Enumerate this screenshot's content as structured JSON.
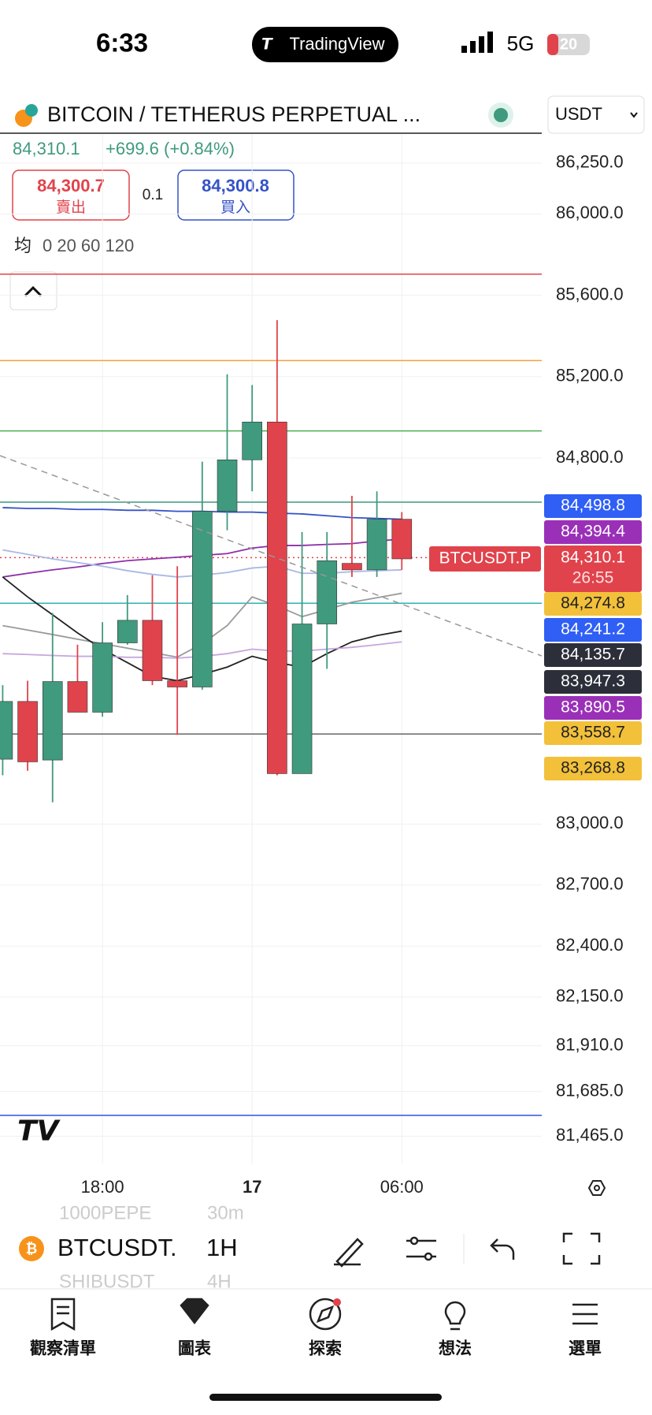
{
  "status_bar": {
    "time": "6:33",
    "app": "TradingView",
    "network": "5G",
    "battery": "20"
  },
  "header": {
    "symbol": "BITCOIN / TETHERUS PERPETUAL ...",
    "currency": "USDT"
  },
  "quote": {
    "price": "84,310.1",
    "change": "+699.6 (+0.84%)",
    "sell": {
      "price": "84,300.7",
      "label": "賣出"
    },
    "spread": "0.1",
    "buy": {
      "price": "84,300.8",
      "label": "買入"
    }
  },
  "indicator_legend": {
    "label": "均",
    "params": "0 20 60 120"
  },
  "chart_data": {
    "type": "candlestick",
    "categories": [
      null,
      null,
      null,
      null,
      "18:00",
      null,
      null,
      null,
      null,
      null,
      "17",
      null,
      null,
      null,
      null,
      null,
      "06:00"
    ],
    "open": [
      83319,
      83603,
      83315,
      83701,
      83550,
      83891,
      84002,
      83705,
      83674,
      84538,
      84791,
      84977,
      83248,
      83984,
      84282,
      84250,
      84499
    ],
    "high": [
      83683,
      83705,
      84038,
      83882,
      83993,
      84126,
      84224,
      84268,
      84782,
      85212,
      85159,
      85478,
      84436,
      84436,
      84614,
      84636,
      84534
    ],
    "low": [
      83240,
      83262,
      83107,
      83550,
      83528,
      83882,
      83683,
      83439,
      83661,
      84445,
      84636,
      83240,
      83248,
      83763,
      84215,
      84215,
      84250
    ],
    "close": [
      83603,
      83306,
      83701,
      83550,
      83891,
      84002,
      83705,
      83674,
      84538,
      84791,
      84977,
      83248,
      83984,
      84295,
      84250,
      84499,
      84304
    ],
    "up_color": "#3f9a7e",
    "down_color": "#e0434c",
    "ylim": [
      81331,
      86393
    ],
    "yticks": [
      {
        "value": 86250,
        "label": "86,250.0"
      },
      {
        "value": 86000,
        "label": "86,000.0"
      },
      {
        "value": 85600,
        "label": "85,600.0"
      },
      {
        "value": 85200,
        "label": "85,200.0"
      },
      {
        "value": 84800,
        "label": "84,800.0"
      },
      {
        "value": 83000,
        "label": "83,000.0"
      },
      {
        "value": 82700,
        "label": "82,700.0"
      },
      {
        "value": 82400,
        "label": "82,400.0"
      },
      {
        "value": 82150,
        "label": "82,150.0"
      },
      {
        "value": 81910,
        "label": "81,910.0"
      },
      {
        "value": 81685,
        "label": "81,685.0"
      },
      {
        "value": 81465,
        "label": "81,465.0"
      }
    ],
    "grid": true,
    "series": [
      {
        "color": "#3552c8",
        "values": [
          84556,
          84552,
          84552,
          84547,
          84547,
          84543,
          84543,
          84538,
          84538,
          84534,
          84534,
          84529,
          84525,
          84516,
          84507,
          84503,
          84499
        ]
      },
      {
        "color": "#8e2fa8",
        "values": [
          84215,
          84233,
          84250,
          84264,
          84281,
          84295,
          84304,
          84312,
          84321,
          84330,
          84357,
          84370,
          84370,
          84375,
          84379,
          84392,
          84401
        ]
      },
      {
        "color": "#a9b8e6",
        "values": [
          84348,
          84326,
          84304,
          84286,
          84268,
          84246,
          84228,
          84215,
          84224,
          84237,
          84259,
          84268,
          84233,
          84233,
          84241,
          84246,
          84250
        ]
      },
      {
        "color": "#9a9a9a",
        "values": [
          83976,
          83954,
          83932,
          83909,
          83887,
          83865,
          83843,
          83821,
          83887,
          83976,
          84117,
          84073,
          84020,
          84055,
          84091,
          84113,
          84135
        ]
      },
      {
        "color": "#222222",
        "values": [
          84215,
          84117,
          84029,
          83940,
          83860,
          83794,
          83727,
          83705,
          83736,
          83772,
          83825,
          83794,
          83772,
          83838,
          83896,
          83927,
          83949
        ]
      },
      {
        "color": "#c7a6de",
        "values": [
          83838,
          83834,
          83829,
          83825,
          83825,
          83820,
          83820,
          83816,
          83825,
          83838,
          83860,
          83851,
          83851,
          83860,
          83869,
          83882,
          83896
        ]
      }
    ],
    "levels": [
      {
        "value": 85704,
        "color": "#e0444c"
      },
      {
        "value": 85279,
        "color": "#f5a040"
      },
      {
        "value": 84933,
        "color": "#4caf50"
      },
      {
        "value": 84583,
        "color": "#3a9a80"
      },
      {
        "value": 84310.1,
        "color": "#e0444c",
        "dotted": true
      },
      {
        "value": 84086,
        "color": "#2bb5b0"
      },
      {
        "value": 83443,
        "color": "#666666"
      },
      {
        "value": 81568,
        "color": "#3050e0"
      }
    ]
  },
  "price_tags": [
    {
      "label": "84,498.8",
      "color": "#2f5ff5",
      "text_color": "#ffffff"
    },
    {
      "label": "84,394.4",
      "color": "#9b30b8",
      "text_color": "#ffffff"
    },
    {
      "label": "84,274.8",
      "color": "#f3c03a",
      "text_color": "#222222"
    },
    {
      "label": "84,241.2",
      "color": "#2f5ff5",
      "text_color": "#ffffff"
    },
    {
      "label": "84,135.7",
      "color": "#2c2f3a",
      "text_color": "#ffffff"
    },
    {
      "label": "83,947.3",
      "color": "#2c2f3a",
      "text_color": "#ffffff"
    },
    {
      "label": "83,890.5",
      "color": "#9b30b8",
      "text_color": "#ffffff"
    },
    {
      "label": "83,558.7",
      "color": "#f3c03a",
      "text_color": "#222222"
    },
    {
      "label": "83,268.8",
      "color": "#f3c03a",
      "text_color": "#222222"
    }
  ],
  "last_price_tag": {
    "symbol": "BTCUSDT.P",
    "price": "84,310.1",
    "countdown": "26:55"
  },
  "toolbar": {
    "symbol": "BTCUSDT.",
    "interval": "1H",
    "picker_above": [
      "1000PEPE",
      "30m"
    ],
    "picker_below": [
      "SHIBUSDT",
      "4H"
    ]
  },
  "tab_bar": [
    "觀察清單",
    "圖表",
    "探索",
    "想法",
    "選單"
  ]
}
